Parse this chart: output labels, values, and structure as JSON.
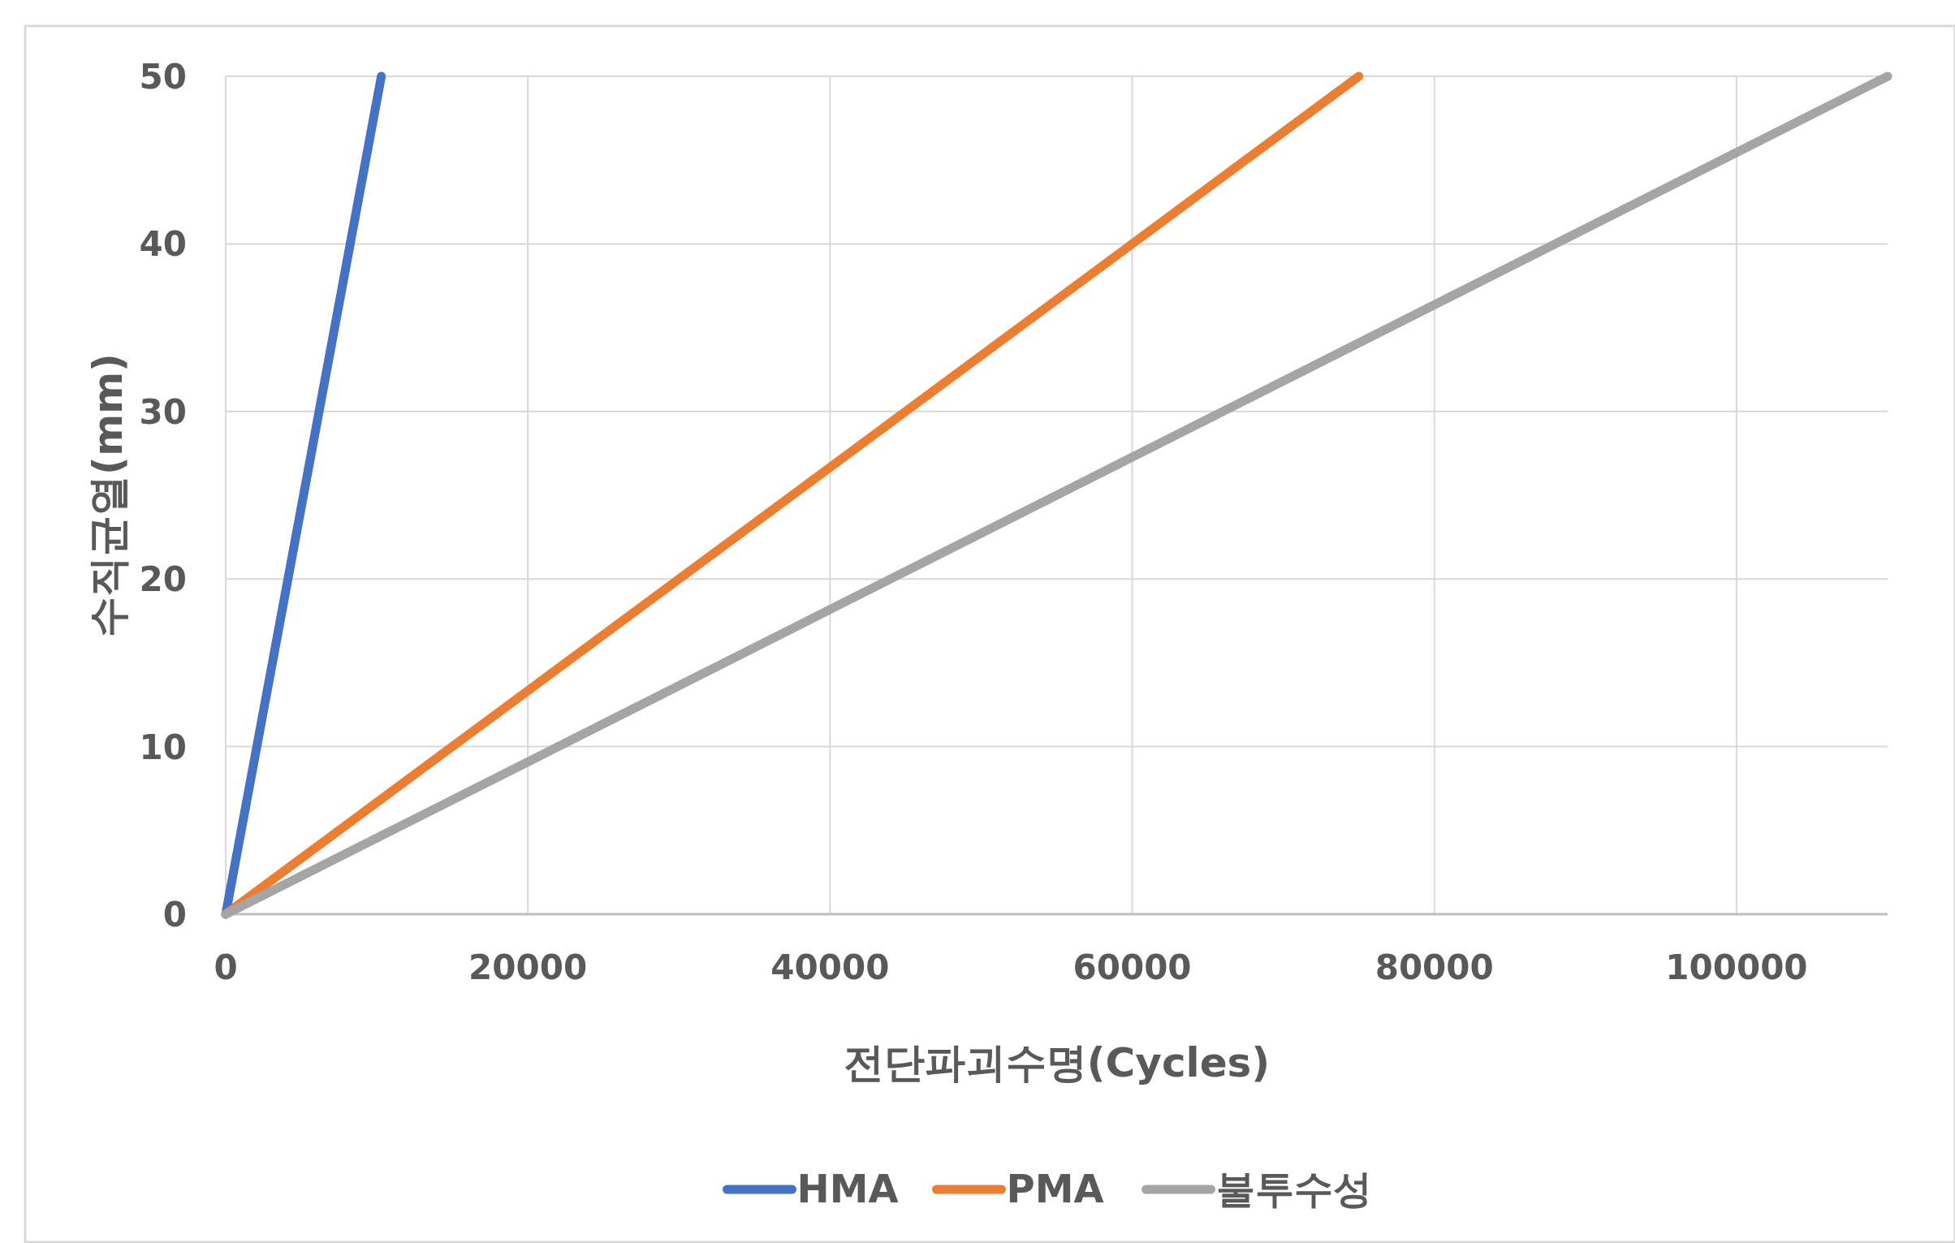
{
  "chart_data": {
    "type": "line",
    "xlabel": "전단파괴수명(Cycles)",
    "ylabel": "수직균열(mm)",
    "xlim": [
      0,
      110000
    ],
    "ylim": [
      0,
      50
    ],
    "xticks": [
      0,
      20000,
      40000,
      60000,
      80000,
      100000
    ],
    "yticks": [
      0,
      10,
      20,
      30,
      40,
      50
    ],
    "grid": true,
    "legend": "bottom",
    "series": [
      {
        "name": "HMA",
        "color": "#4472c4",
        "x": [
          0,
          10300
        ],
        "values": [
          0,
          50
        ]
      },
      {
        "name": "PMA",
        "color": "#ed7d31",
        "x": [
          0,
          75000
        ],
        "values": [
          0,
          50
        ]
      },
      {
        "name": "불투수성",
        "color": "#a5a5a5",
        "x": [
          0,
          110000
        ],
        "values": [
          0,
          50
        ]
      }
    ]
  }
}
